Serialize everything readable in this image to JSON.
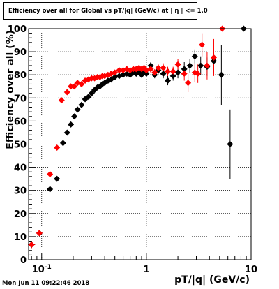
{
  "chart_data": {
    "type": "scatter",
    "title": "Efficiency over all for Global vs pT/|q| (GeV/c) at | η | <= 1.0",
    "xlabel": "pT/|q| (GeV/c)",
    "ylabel": "Efficiency over all (%)",
    "xscale": "log",
    "xlim": [
      0.075,
      10
    ],
    "ylim": [
      0,
      100
    ],
    "grid": true,
    "x_ticks": [
      {
        "value": 0.1,
        "label": "10^-1"
      },
      {
        "value": 1,
        "label": "1"
      },
      {
        "value": 10,
        "label": "10"
      }
    ],
    "y_ticks": [
      0,
      10,
      20,
      30,
      40,
      50,
      60,
      70,
      80,
      90,
      100
    ],
    "series": [
      {
        "color": "#000000",
        "marker": "diamond",
        "points": [
          [
            0.08,
            6.5,
            1.5
          ],
          [
            0.095,
            11.5,
            1.0
          ],
          [
            0.12,
            30.5,
            1.0
          ],
          [
            0.14,
            35.0,
            1.0
          ],
          [
            0.16,
            50.5,
            1.0
          ],
          [
            0.175,
            55.0,
            1.0
          ],
          [
            0.19,
            58.5,
            1.0
          ],
          [
            0.205,
            62.0,
            1.0
          ],
          [
            0.22,
            65.0,
            1.0
          ],
          [
            0.24,
            67.0,
            1.0
          ],
          [
            0.26,
            69.5,
            1.0
          ],
          [
            0.28,
            70.5,
            1.0
          ],
          [
            0.3,
            72.0,
            1.0
          ],
          [
            0.32,
            73.5,
            1.0
          ],
          [
            0.34,
            74.5,
            1.0
          ],
          [
            0.36,
            75.0,
            1.0
          ],
          [
            0.38,
            76.0,
            1.0
          ],
          [
            0.4,
            76.5,
            1.0
          ],
          [
            0.43,
            77.5,
            1.0
          ],
          [
            0.46,
            78.0,
            1.0
          ],
          [
            0.5,
            79.0,
            1.0
          ],
          [
            0.55,
            79.5,
            1.0
          ],
          [
            0.6,
            80.0,
            1.0
          ],
          [
            0.65,
            80.5,
            1.0
          ],
          [
            0.7,
            80.0,
            1.0
          ],
          [
            0.75,
            81.0,
            1.0
          ],
          [
            0.8,
            80.5,
            1.0
          ],
          [
            0.85,
            81.0,
            1.0
          ],
          [
            0.9,
            80.0,
            1.0
          ],
          [
            0.95,
            81.5,
            1.0
          ],
          [
            1.0,
            80.5,
            1.5
          ],
          [
            1.1,
            84.0,
            1.5
          ],
          [
            1.2,
            80.0,
            1.5
          ],
          [
            1.3,
            82.0,
            1.5
          ],
          [
            1.45,
            80.5,
            2.0
          ],
          [
            1.6,
            77.5,
            2.0
          ],
          [
            1.8,
            79.5,
            2.0
          ],
          [
            2.0,
            81.0,
            2.5
          ],
          [
            2.3,
            82.5,
            3.0
          ],
          [
            2.6,
            84.0,
            3.0
          ],
          [
            2.9,
            88.0,
            3.0
          ],
          [
            3.3,
            84.0,
            4.0
          ],
          [
            3.8,
            83.5,
            4.0
          ],
          [
            4.4,
            86.0,
            5.0
          ],
          [
            5.2,
            80.0,
            13.0
          ],
          [
            6.3,
            50.0,
            15.0
          ],
          [
            8.5,
            100.0,
            0.0
          ]
        ]
      },
      {
        "color": "#ff0000",
        "marker": "diamond",
        "points": [
          [
            0.08,
            6.5,
            1.5
          ],
          [
            0.095,
            11.5,
            1.0
          ],
          [
            0.12,
            37.0,
            1.0
          ],
          [
            0.14,
            48.5,
            1.0
          ],
          [
            0.155,
            69.0,
            1.0
          ],
          [
            0.175,
            72.5,
            1.0
          ],
          [
            0.19,
            75.0,
            1.0
          ],
          [
            0.205,
            75.0,
            1.0
          ],
          [
            0.22,
            76.5,
            1.0
          ],
          [
            0.24,
            76.0,
            1.0
          ],
          [
            0.26,
            77.5,
            1.0
          ],
          [
            0.28,
            78.0,
            1.0
          ],
          [
            0.3,
            78.5,
            1.0
          ],
          [
            0.32,
            78.5,
            1.0
          ],
          [
            0.34,
            79.0,
            1.0
          ],
          [
            0.36,
            79.0,
            1.0
          ],
          [
            0.38,
            79.5,
            1.0
          ],
          [
            0.4,
            79.5,
            1.0
          ],
          [
            0.43,
            80.0,
            1.0
          ],
          [
            0.46,
            80.5,
            1.0
          ],
          [
            0.5,
            81.0,
            1.0
          ],
          [
            0.55,
            82.0,
            1.0
          ],
          [
            0.6,
            82.0,
            1.0
          ],
          [
            0.65,
            82.5,
            1.0
          ],
          [
            0.7,
            82.0,
            1.0
          ],
          [
            0.75,
            82.5,
            1.0
          ],
          [
            0.8,
            82.5,
            1.0
          ],
          [
            0.85,
            83.0,
            1.0
          ],
          [
            0.9,
            82.5,
            1.0
          ],
          [
            0.95,
            83.0,
            1.0
          ],
          [
            1.0,
            82.0,
            1.5
          ],
          [
            1.1,
            82.5,
            1.5
          ],
          [
            1.2,
            81.0,
            1.5
          ],
          [
            1.3,
            83.0,
            1.5
          ],
          [
            1.45,
            83.0,
            2.0
          ],
          [
            1.6,
            81.5,
            2.0
          ],
          [
            1.8,
            81.5,
            2.0
          ],
          [
            2.0,
            84.5,
            2.5
          ],
          [
            2.3,
            80.5,
            3.0
          ],
          [
            2.5,
            76.5,
            4.0
          ],
          [
            2.9,
            81.0,
            4.0
          ],
          [
            3.1,
            80.5,
            4.0
          ],
          [
            3.4,
            93.0,
            5.0
          ],
          [
            3.8,
            84.0,
            6.0
          ],
          [
            4.4,
            87.5,
            8.0
          ],
          [
            5.3,
            100.0,
            0.0
          ]
        ]
      }
    ]
  },
  "footer": {
    "timestamp": "Mon Jun 11 09:22:46 2018"
  }
}
